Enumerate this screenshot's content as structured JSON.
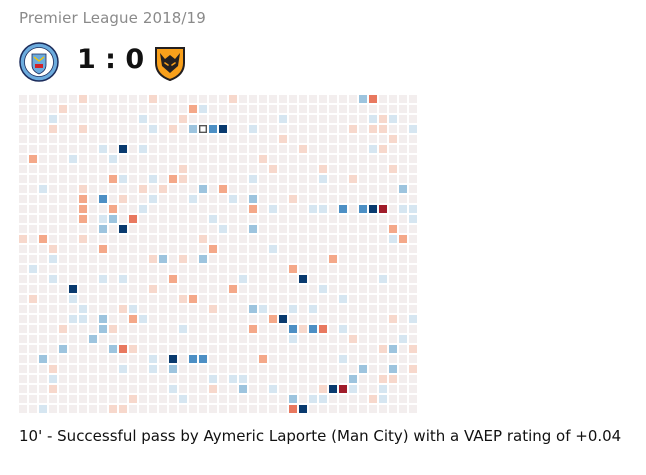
{
  "header": {
    "league_title": "Premier League 2018/19",
    "home_team_icon": "manchester-city-crest-icon",
    "away_team_icon": "wolves-crest-icon",
    "score": "1 : 0"
  },
  "grid": {
    "rows": 32,
    "cols": 40,
    "colors": {
      "base": "#f3eeee",
      "light_red": "#f7d8cc",
      "red": "#f4a889",
      "orange_red": "#e8785f",
      "dark_red": "#a01c2a",
      "light_blue": "#d6e6f1",
      "mid_blue": "#9dc4de",
      "blue": "#4d8fc4",
      "dark_blue": "#0a3a6e",
      "selected_border": "#555555"
    },
    "cells": [
      {
        "row": 0,
        "col": 34,
        "level": "mid_blue"
      },
      {
        "row": 0,
        "col": 35,
        "level": "orange_red"
      },
      {
        "row": 3,
        "col": 18,
        "level": "selected"
      },
      {
        "row": 3,
        "col": 19,
        "level": "blue"
      },
      {
        "row": 3,
        "col": 20,
        "level": "dark_blue"
      },
      {
        "row": 5,
        "col": 10,
        "level": "dark_blue"
      },
      {
        "row": 11,
        "col": 32,
        "level": "blue"
      },
      {
        "row": 11,
        "col": 34,
        "level": "blue"
      },
      {
        "row": 11,
        "col": 35,
        "level": "dark_blue"
      },
      {
        "row": 11,
        "col": 36,
        "level": "dark_red"
      },
      {
        "row": 12,
        "col": 9,
        "level": "mid_blue"
      },
      {
        "row": 12,
        "col": 11,
        "level": "orange_red"
      },
      {
        "row": 13,
        "col": 10,
        "level": "dark_blue"
      },
      {
        "row": 13,
        "col": 8,
        "level": "mid_blue"
      },
      {
        "row": 10,
        "col": 8,
        "level": "blue"
      },
      {
        "row": 10,
        "col": 23,
        "level": "mid_blue"
      },
      {
        "row": 16,
        "col": 14,
        "level": "mid_blue"
      },
      {
        "row": 18,
        "col": 28,
        "level": "dark_blue"
      },
      {
        "row": 19,
        "col": 5,
        "level": "dark_blue"
      },
      {
        "row": 21,
        "col": 23,
        "level": "mid_blue"
      },
      {
        "row": 22,
        "col": 26,
        "level": "dark_blue"
      },
      {
        "row": 22,
        "col": 8,
        "level": "mid_blue"
      },
      {
        "row": 23,
        "col": 27,
        "level": "blue"
      },
      {
        "row": 23,
        "col": 28,
        "level": "light_red"
      },
      {
        "row": 23,
        "col": 29,
        "level": "blue"
      },
      {
        "row": 23,
        "col": 30,
        "level": "orange_red"
      },
      {
        "row": 25,
        "col": 9,
        "level": "mid_blue"
      },
      {
        "row": 25,
        "col": 10,
        "level": "orange_red"
      },
      {
        "row": 26,
        "col": 15,
        "level": "dark_blue"
      },
      {
        "row": 26,
        "col": 17,
        "level": "blue"
      },
      {
        "row": 26,
        "col": 18,
        "level": "blue"
      },
      {
        "row": 29,
        "col": 31,
        "level": "dark_blue"
      },
      {
        "row": 29,
        "col": 32,
        "level": "dark_red"
      },
      {
        "row": 31,
        "col": 27,
        "level": "orange_red"
      },
      {
        "row": 31,
        "col": 28,
        "level": "dark_blue"
      }
    ]
  },
  "caption": "10' - Successful pass by Aymeric Laporte (Man City) with a VAEP rating of +0.04"
}
